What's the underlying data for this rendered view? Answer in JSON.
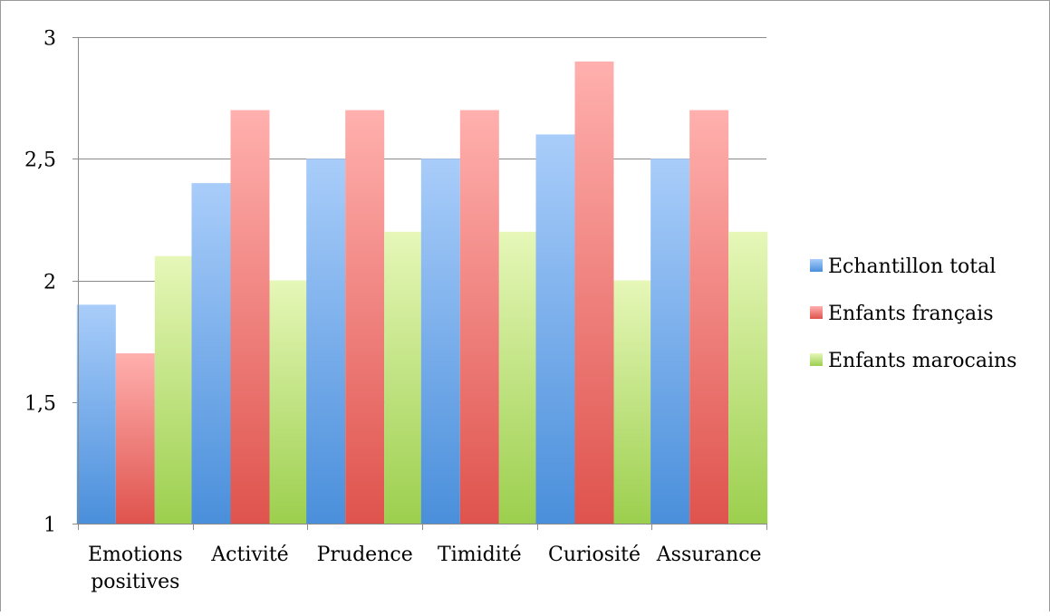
{
  "chart_data": {
    "type": "bar",
    "categories": [
      [
        "Emotions",
        "positives"
      ],
      [
        "Activité"
      ],
      [
        "Prudence"
      ],
      [
        "Timidité"
      ],
      [
        "Curiosité"
      ],
      [
        "Assurance"
      ]
    ],
    "series": [
      {
        "name": "Echantillon total",
        "values": [
          1.9,
          2.4,
          2.5,
          2.5,
          2.6,
          2.5
        ],
        "color_top": "#a9cdfa",
        "color_bottom": "#4a8fdb",
        "legend_color": "#4f8ee0"
      },
      {
        "name": "Enfants français",
        "values": [
          1.7,
          2.7,
          2.7,
          2.7,
          2.9,
          2.7
        ],
        "color_top": "#ffb0ae",
        "color_bottom": "#df534d",
        "legend_color": "#e0524c"
      },
      {
        "name": "Enfants marocains",
        "values": [
          2.1,
          2.0,
          2.2,
          2.2,
          2.0,
          2.2
        ],
        "color_top": "#e6f7b8",
        "color_bottom": "#9ccf4e",
        "legend_color": "#a2d04e"
      }
    ],
    "yticks": [
      "1",
      "1,5",
      "2",
      "2,5",
      "3"
    ],
    "ytick_values": [
      1,
      1.5,
      2,
      2.5,
      3
    ],
    "ylim": [
      1,
      3
    ],
    "grid": true,
    "legend_position": "right",
    "title": "",
    "xlabel": "",
    "ylabel": ""
  }
}
